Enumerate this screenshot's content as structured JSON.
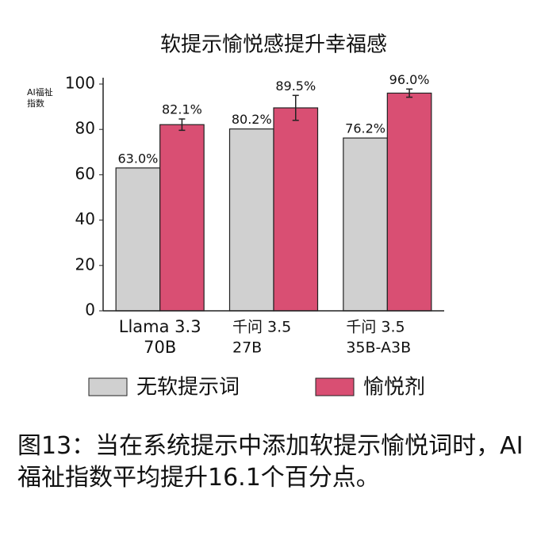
{
  "chart_data": {
    "type": "bar",
    "title": "软提示愉悦感提升幸福感",
    "ylabel": [
      "AI福祉",
      "指数"
    ],
    "categories": [
      [
        "Llama 3.3",
        "70B"
      ],
      [
        "千问 3.5",
        "27B"
      ],
      [
        "千问 3.5",
        "35B-A3B"
      ]
    ],
    "series": [
      {
        "name": "无软提示词",
        "color": "#d0d0d0",
        "values": [
          63.0,
          80.2,
          76.2
        ],
        "value_labels": [
          "63.0%",
          "80.2%",
          "76.2%"
        ]
      },
      {
        "name": "愉悦剂",
        "color": "#d94f73",
        "values": [
          82.1,
          89.5,
          96.0
        ],
        "value_labels": [
          "82.1%",
          "89.5%",
          "96.0%"
        ],
        "errors": [
          2.5,
          5.5,
          1.8
        ]
      }
    ],
    "ylim": [
      0,
      100
    ],
    "yticks": [
      0,
      20,
      40,
      60,
      80,
      100
    ],
    "caption": "图13：当在系统提示中添加软提示愉悦词时，AI福祉指数平均提升16.1个百分点。"
  }
}
